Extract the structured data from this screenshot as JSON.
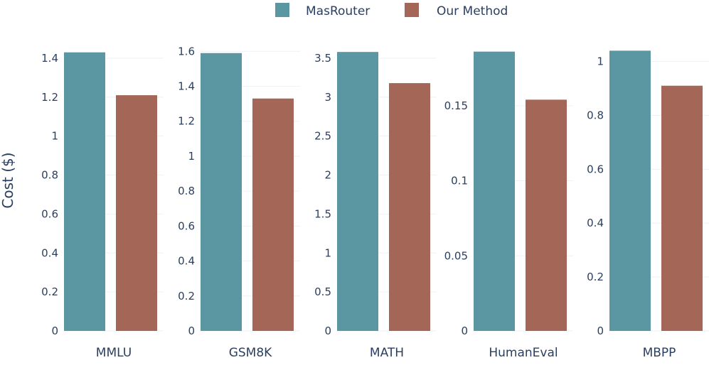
{
  "chart_data": {
    "type": "bar",
    "ylabel": "Cost ($)",
    "legend": {
      "placement": "top-center",
      "entries": [
        {
          "name": "MasRouter",
          "color": "#5b97a3"
        },
        {
          "name": "Our Method",
          "color": "#a46757"
        }
      ]
    },
    "grid": true,
    "panels": [
      {
        "category": "MMLU",
        "ylim": [
          0,
          1.48
        ],
        "ticks": [
          0,
          0.2,
          0.4,
          0.6,
          0.8,
          1,
          1.2,
          1.4
        ],
        "tick_labels": [
          "0",
          "0.2",
          "0.4",
          "0.6",
          "0.8",
          "1",
          "1.2",
          "1.4"
        ],
        "values": [
          1.43,
          1.21
        ]
      },
      {
        "category": "GSM8K",
        "ylim": [
          0,
          1.65
        ],
        "ticks": [
          0,
          0.2,
          0.4,
          0.6,
          0.8,
          1,
          1.2,
          1.4,
          1.6
        ],
        "tick_labels": [
          "0",
          "0.2",
          "0.4",
          "0.6",
          "0.8",
          "1",
          "1.2",
          "1.4",
          "1.6"
        ],
        "values": [
          1.59,
          1.33
        ]
      },
      {
        "category": "MATH",
        "ylim": [
          0,
          3.7
        ],
        "ticks": [
          0,
          0.5,
          1,
          1.5,
          2,
          2.5,
          3,
          3.5
        ],
        "tick_labels": [
          "0",
          "0.5",
          "1",
          "1.5",
          "2",
          "2.5",
          "3",
          "3.5"
        ],
        "values": [
          3.58,
          3.18
        ]
      },
      {
        "category": "HumanEval",
        "ylim": [
          0,
          0.192
        ],
        "ticks": [
          0,
          0.05,
          0.1,
          0.15
        ],
        "tick_labels": [
          "0",
          "0.05",
          "0.1",
          "0.15"
        ],
        "values": [
          0.186,
          0.154
        ]
      },
      {
        "category": "MBPP",
        "ylim": [
          0,
          1.07
        ],
        "ticks": [
          0,
          0.2,
          0.4,
          0.6,
          0.8,
          1
        ],
        "tick_labels": [
          "0",
          "0.2",
          "0.4",
          "0.6",
          "0.8",
          "1"
        ],
        "values": [
          1.04,
          0.91
        ]
      }
    ]
  }
}
